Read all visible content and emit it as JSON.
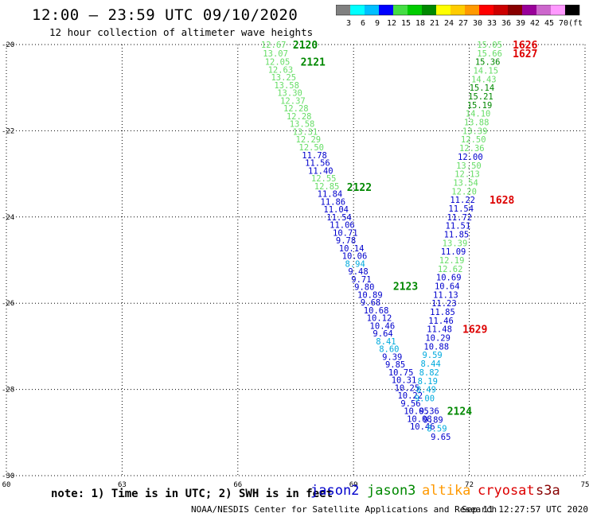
{
  "title": "12:00 – 23:59 UTC 09/10/2020",
  "subtitle": "12 hour collection of altimeter wave heights",
  "colorbar": {
    "labels": [
      "3",
      "6",
      "9",
      "12",
      "15",
      "18",
      "21",
      "24",
      "27",
      "30",
      "33",
      "36",
      "39",
      "42",
      "45",
      "70",
      "(ft)"
    ],
    "colors": [
      "#808080",
      "#00ffff",
      "#00bfff",
      "#0000ff",
      "#44dd44",
      "#00cc00",
      "#008800",
      "#ffff00",
      "#ffcc00",
      "#ff9900",
      "#ff0000",
      "#cc0000",
      "#880000",
      "#990099",
      "#cc66cc",
      "#ff99ff",
      "#000000"
    ]
  },
  "note": "note: 1) Time is in UTC; 2) SWH is in feet",
  "satellites": [
    {
      "name": "jason2",
      "color": "#0000cc"
    },
    {
      "name": "jason3",
      "color": "#008800"
    },
    {
      "name": "altika",
      "color": "#ff9900"
    },
    {
      "name": "cryosat",
      "color": "#dd0000"
    },
    {
      "name": "s3a",
      "color": "#880000"
    }
  ],
  "credit": "NOAA/NESDIS Center for Satellite Applications and Research",
  "timestamp": "Sep 11 12:27:57 UTC 2020",
  "chart_data": {
    "type": "scatter",
    "xlim": [
      60,
      75
    ],
    "ylim": [
      -30,
      -20
    ],
    "xticks": [
      "60",
      "63",
      "66",
      "69",
      "72",
      "75"
    ],
    "yticks": [
      "-20",
      "-22",
      "-24",
      "-26",
      "-28",
      "-30"
    ],
    "grid": true,
    "series": [
      {
        "name": "jason3",
        "color_key": "sat",
        "points": [
          {
            "x": 66.6,
            "y": -20.0,
            "v": "12.67",
            "c": "#66dd66"
          },
          {
            "x": 66.65,
            "y": -20.2,
            "v": "13.07",
            "c": "#66dd66"
          },
          {
            "x": 66.7,
            "y": -20.4,
            "v": "12.05",
            "c": "#66dd66"
          },
          {
            "x": 66.78,
            "y": -20.58,
            "v": "12.63",
            "c": "#66dd66"
          },
          {
            "x": 66.86,
            "y": -20.76,
            "v": "13.25",
            "c": "#66dd66"
          },
          {
            "x": 66.94,
            "y": -20.94,
            "v": "13.58",
            "c": "#66dd66"
          },
          {
            "x": 67.02,
            "y": -21.12,
            "v": "13.30",
            "c": "#66dd66"
          },
          {
            "x": 67.1,
            "y": -21.3,
            "v": "12.37",
            "c": "#66dd66"
          },
          {
            "x": 67.18,
            "y": -21.48,
            "v": "12.28",
            "c": "#66dd66"
          },
          {
            "x": 67.26,
            "y": -21.66,
            "v": "12.28",
            "c": "#66dd66"
          },
          {
            "x": 67.34,
            "y": -21.84,
            "v": "13.58",
            "c": "#66dd66"
          },
          {
            "x": 67.42,
            "y": -22.02,
            "v": "13.31",
            "c": "#66dd66"
          },
          {
            "x": 67.5,
            "y": -22.2,
            "v": "12.29",
            "c": "#66dd66"
          },
          {
            "x": 67.58,
            "y": -22.38,
            "v": "12.50",
            "c": "#66dd66"
          },
          {
            "x": 67.66,
            "y": -22.56,
            "v": "11.78",
            "c": "#0000cc"
          },
          {
            "x": 67.74,
            "y": -22.74,
            "v": "11.56",
            "c": "#0000cc"
          },
          {
            "x": 67.82,
            "y": -22.92,
            "v": "11.40",
            "c": "#0000cc"
          },
          {
            "x": 67.9,
            "y": -23.1,
            "v": "12.55",
            "c": "#66dd66"
          },
          {
            "x": 67.98,
            "y": -23.28,
            "v": "12.85",
            "c": "#66dd66"
          },
          {
            "x": 68.06,
            "y": -23.46,
            "v": "11.84",
            "c": "#0000cc"
          },
          {
            "x": 68.14,
            "y": -23.64,
            "v": "11.86",
            "c": "#0000cc"
          },
          {
            "x": 68.22,
            "y": -23.82,
            "v": "11.04",
            "c": "#0000cc"
          },
          {
            "x": 68.3,
            "y": -24.0,
            "v": "11.54",
            "c": "#0000cc"
          },
          {
            "x": 68.38,
            "y": -24.18,
            "v": "11.06",
            "c": "#0000cc"
          },
          {
            "x": 68.46,
            "y": -24.36,
            "v": "10.71",
            "c": "#0000cc"
          },
          {
            "x": 68.54,
            "y": -24.54,
            "v": "9.78",
            "c": "#0000cc"
          },
          {
            "x": 68.62,
            "y": -24.72,
            "v": "10.14",
            "c": "#0000cc"
          },
          {
            "x": 68.7,
            "y": -24.9,
            "v": "10.06",
            "c": "#0000cc"
          },
          {
            "x": 68.78,
            "y": -25.08,
            "v": "8.94",
            "c": "#00aadd"
          },
          {
            "x": 68.86,
            "y": -25.26,
            "v": "9.48",
            "c": "#0000cc"
          },
          {
            "x": 68.94,
            "y": -25.44,
            "v": "9.71",
            "c": "#0000cc"
          },
          {
            "x": 69.02,
            "y": -25.62,
            "v": "9.80",
            "c": "#0000cc"
          },
          {
            "x": 69.1,
            "y": -25.8,
            "v": "10.89",
            "c": "#0000cc"
          },
          {
            "x": 69.18,
            "y": -25.98,
            "v": "9.68",
            "c": "#0000cc"
          },
          {
            "x": 69.26,
            "y": -26.16,
            "v": "10.68",
            "c": "#0000cc"
          },
          {
            "x": 69.34,
            "y": -26.34,
            "v": "10.12",
            "c": "#0000cc"
          },
          {
            "x": 69.42,
            "y": -26.52,
            "v": "10.46",
            "c": "#0000cc"
          },
          {
            "x": 69.5,
            "y": -26.7,
            "v": "9.64",
            "c": "#0000cc"
          },
          {
            "x": 69.58,
            "y": -26.88,
            "v": "8.41",
            "c": "#00aadd"
          },
          {
            "x": 69.66,
            "y": -27.06,
            "v": "8.60",
            "c": "#00aadd"
          },
          {
            "x": 69.74,
            "y": -27.24,
            "v": "9.39",
            "c": "#0000cc"
          },
          {
            "x": 69.82,
            "y": -27.42,
            "v": "9.85",
            "c": "#0000cc"
          },
          {
            "x": 69.9,
            "y": -27.6,
            "v": "10.75",
            "c": "#0000cc"
          },
          {
            "x": 69.98,
            "y": -27.78,
            "v": "10.31",
            "c": "#0000cc"
          },
          {
            "x": 70.06,
            "y": -27.96,
            "v": "10.25",
            "c": "#0000cc"
          },
          {
            "x": 70.14,
            "y": -28.14,
            "v": "10.22",
            "c": "#0000cc"
          },
          {
            "x": 70.22,
            "y": -28.32,
            "v": "9.56",
            "c": "#0000cc"
          },
          {
            "x": 70.3,
            "y": -28.5,
            "v": "10.05",
            "c": "#0000cc"
          },
          {
            "x": 70.38,
            "y": -28.68,
            "v": "10.08",
            "c": "#0000cc"
          },
          {
            "x": 70.46,
            "y": -28.86,
            "v": "10.46",
            "c": "#0000cc"
          }
        ]
      },
      {
        "name": "cryosat",
        "color_key": "sat",
        "points": [
          {
            "x": 72.2,
            "y": -20.0,
            "v": "15.05",
            "c": "#66dd66"
          },
          {
            "x": 72.2,
            "y": -20.2,
            "v": "15.66",
            "c": "#66dd66"
          },
          {
            "x": 72.15,
            "y": -20.4,
            "v": "15.36",
            "c": "#008800"
          },
          {
            "x": 72.1,
            "y": -20.6,
            "v": "14.15",
            "c": "#66dd66"
          },
          {
            "x": 72.05,
            "y": -20.8,
            "v": "14.43",
            "c": "#66dd66"
          },
          {
            "x": 72.0,
            "y": -21.0,
            "v": "15.14",
            "c": "#008800"
          },
          {
            "x": 71.97,
            "y": -21.2,
            "v": "15.21",
            "c": "#008800"
          },
          {
            "x": 71.94,
            "y": -21.4,
            "v": "15.19",
            "c": "#008800"
          },
          {
            "x": 71.9,
            "y": -21.6,
            "v": "14.10",
            "c": "#66dd66"
          },
          {
            "x": 71.86,
            "y": -21.8,
            "v": "13.88",
            "c": "#66dd66"
          },
          {
            "x": 71.82,
            "y": -22.0,
            "v": "13.39",
            "c": "#66dd66"
          },
          {
            "x": 71.78,
            "y": -22.2,
            "v": "12.50",
            "c": "#66dd66"
          },
          {
            "x": 71.74,
            "y": -22.4,
            "v": "12.36",
            "c": "#66dd66"
          },
          {
            "x": 71.7,
            "y": -22.6,
            "v": "12.00",
            "c": "#0000cc"
          },
          {
            "x": 71.66,
            "y": -22.8,
            "v": "13.50",
            "c": "#66dd66"
          },
          {
            "x": 71.62,
            "y": -23.0,
            "v": "12.13",
            "c": "#66dd66"
          },
          {
            "x": 71.58,
            "y": -23.2,
            "v": "13.54",
            "c": "#66dd66"
          },
          {
            "x": 71.54,
            "y": -23.4,
            "v": "12.20",
            "c": "#66dd66"
          },
          {
            "x": 71.5,
            "y": -23.6,
            "v": "11.22",
            "c": "#0000cc"
          },
          {
            "x": 71.46,
            "y": -23.8,
            "v": "11.54",
            "c": "#0000cc"
          },
          {
            "x": 71.42,
            "y": -24.0,
            "v": "11.72",
            "c": "#0000cc"
          },
          {
            "x": 71.38,
            "y": -24.2,
            "v": "11.51",
            "c": "#0000cc"
          },
          {
            "x": 71.34,
            "y": -24.4,
            "v": "11.85",
            "c": "#0000cc"
          },
          {
            "x": 71.3,
            "y": -24.6,
            "v": "13.39",
            "c": "#66dd66"
          },
          {
            "x": 71.26,
            "y": -24.8,
            "v": "11.09",
            "c": "#0000cc"
          },
          {
            "x": 71.22,
            "y": -25.0,
            "v": "12.19",
            "c": "#66dd66"
          },
          {
            "x": 71.18,
            "y": -25.2,
            "v": "12.62",
            "c": "#66dd66"
          },
          {
            "x": 71.14,
            "y": -25.4,
            "v": "10.69",
            "c": "#0000cc"
          },
          {
            "x": 71.1,
            "y": -25.6,
            "v": "10.64",
            "c": "#0000cc"
          },
          {
            "x": 71.06,
            "y": -25.8,
            "v": "11.13",
            "c": "#0000cc"
          },
          {
            "x": 71.02,
            "y": -26.0,
            "v": "11.23",
            "c": "#0000cc"
          },
          {
            "x": 70.98,
            "y": -26.2,
            "v": "11.85",
            "c": "#0000cc"
          },
          {
            "x": 70.94,
            "y": -26.4,
            "v": "11.46",
            "c": "#0000cc"
          },
          {
            "x": 70.9,
            "y": -26.6,
            "v": "11.48",
            "c": "#0000cc"
          },
          {
            "x": 70.86,
            "y": -26.8,
            "v": "10.29",
            "c": "#0000cc"
          },
          {
            "x": 70.82,
            "y": -27.0,
            "v": "10.88",
            "c": "#0000cc"
          },
          {
            "x": 70.78,
            "y": -27.2,
            "v": "9.59",
            "c": "#00aadd"
          },
          {
            "x": 70.74,
            "y": -27.4,
            "v": "8.44",
            "c": "#00aadd"
          },
          {
            "x": 70.7,
            "y": -27.6,
            "v": "8.82",
            "c": "#00aadd"
          },
          {
            "x": 70.66,
            "y": -27.8,
            "v": "8.19",
            "c": "#00aadd"
          },
          {
            "x": 70.62,
            "y": -28.0,
            "v": "8.49",
            "c": "#00aadd"
          },
          {
            "x": 70.58,
            "y": -28.2,
            "v": "9.00",
            "c": "#00aadd"
          },
          {
            "x": 70.7,
            "y": -28.5,
            "v": "9.36",
            "c": "#0000cc"
          },
          {
            "x": 70.8,
            "y": -28.7,
            "v": "9.89",
            "c": "#0000cc"
          },
          {
            "x": 70.9,
            "y": -28.9,
            "v": "8.59",
            "c": "#00aadd"
          },
          {
            "x": 71.0,
            "y": -29.1,
            "v": "9.65",
            "c": "#0000cc"
          }
        ]
      }
    ],
    "time_labels": [
      {
        "text": "2120",
        "c": "#008800",
        "x": 66.6,
        "y": -20.0
      },
      {
        "text": "2121",
        "c": "#008800",
        "x": 66.8,
        "y": -20.4
      },
      {
        "text": "2122",
        "c": "#008800",
        "x": 68.0,
        "y": -23.3
      },
      {
        "text": "2123",
        "c": "#008800",
        "x": 69.2,
        "y": -25.6
      },
      {
        "text": "2124",
        "c": "#008800",
        "x": 70.6,
        "y": -28.5
      },
      {
        "text": "1626",
        "c": "#dd0000",
        "x": 72.3,
        "y": -20.0
      },
      {
        "text": "1627",
        "c": "#dd0000",
        "x": 72.3,
        "y": -20.2
      },
      {
        "text": "1628",
        "c": "#dd0000",
        "x": 71.7,
        "y": -23.6
      },
      {
        "text": "1629",
        "c": "#dd0000",
        "x": 71.0,
        "y": -26.6
      }
    ]
  }
}
